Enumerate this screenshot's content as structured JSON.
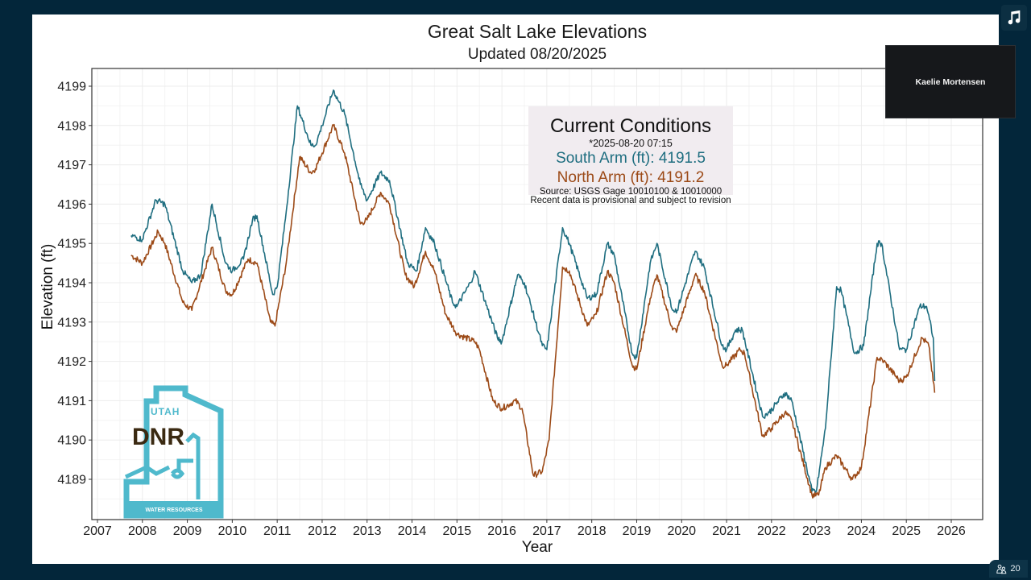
{
  "overlay": {
    "presenter_name": "Kaelie Mortensen",
    "music_icon": "music-note-icon",
    "participants_icon": "people-icon",
    "participants_count": "20"
  },
  "current_conditions": {
    "heading": "Current Conditions",
    "timestamp": "*2025-08-20 07:15",
    "south_arm": "South Arm (ft): 4191.5",
    "north_arm": "North Arm (ft): 4191.2",
    "source": "Source: USGS Gage 10010100 & 10010000",
    "disclaimer": "Recent data is provisional and subject to revision"
  },
  "logo": {
    "line1": "UTAH",
    "line2": "DNR",
    "line3": "WATER RESOURCES",
    "colors": {
      "teal": "#4fb9cc",
      "brown": "#3b2a12"
    }
  },
  "chart_data": {
    "type": "line",
    "title": "Great Salt Lake Elevations",
    "subtitle": "Updated 08/20/2025",
    "xlabel": "Year",
    "ylabel": "Elevation (ft)",
    "xlim": [
      2007,
      2026.5
    ],
    "ylim": [
      4188.0,
      4199.45
    ],
    "x_ticks": [
      2007,
      2008,
      2009,
      2010,
      2011,
      2012,
      2013,
      2014,
      2015,
      2016,
      2017,
      2018,
      2019,
      2020,
      2021,
      2022,
      2023,
      2024,
      2025,
      2026
    ],
    "y_ticks": [
      4189,
      4190,
      4191,
      4192,
      4193,
      4194,
      4195,
      4196,
      4197,
      4198,
      4199
    ],
    "grid": true,
    "legend": "none",
    "series": [
      {
        "name": "South Arm",
        "color": "#1f6e80",
        "x": [
          2007.75,
          2008.0,
          2008.3,
          2008.5,
          2008.9,
          2009.1,
          2009.3,
          2009.55,
          2009.85,
          2010.0,
          2010.25,
          2010.45,
          2010.55,
          2010.9,
          2011.0,
          2011.2,
          2011.45,
          2011.75,
          2011.85,
          2012.0,
          2012.25,
          2012.5,
          2012.85,
          2013.0,
          2013.3,
          2013.5,
          2013.9,
          2014.1,
          2014.3,
          2014.5,
          2014.9,
          2015.0,
          2015.3,
          2015.4,
          2015.9,
          2016.0,
          2016.35,
          2016.5,
          2016.9,
          2017.0,
          2017.35,
          2017.5,
          2017.9,
          2018.1,
          2018.35,
          2018.5,
          2018.9,
          2019.0,
          2019.3,
          2019.45,
          2019.8,
          2019.9,
          2020.3,
          2020.5,
          2020.9,
          2021.0,
          2021.2,
          2021.35,
          2021.8,
          2021.95,
          2022.3,
          2022.45,
          2022.9,
          2023.0,
          2023.2,
          2023.45,
          2023.55,
          2023.85,
          2024.05,
          2024.35,
          2024.45,
          2024.85,
          2025.0,
          2025.3,
          2025.45,
          2025.6,
          2025.63
        ],
        "y": [
          4195.2,
          4195.1,
          4196.1,
          4196.0,
          4194.3,
          4194.0,
          4194.2,
          4196.0,
          4194.5,
          4194.3,
          4194.6,
          4195.6,
          4195.7,
          4193.7,
          4193.9,
          4195.8,
          4198.5,
          4197.5,
          4197.5,
          4198.0,
          4198.9,
          4198.3,
          4196.5,
          4196.1,
          4196.8,
          4196.6,
          4194.5,
          4194.3,
          4195.4,
          4195.0,
          4193.5,
          4193.4,
          4194.0,
          4194.3,
          4192.6,
          4192.5,
          4194.2,
          4194.0,
          4192.4,
          4192.3,
          4195.4,
          4195.0,
          4193.6,
          4193.7,
          4195.0,
          4194.7,
          4192.2,
          4192.1,
          4194.5,
          4195.0,
          4193.3,
          4193.3,
          4194.8,
          4194.4,
          4192.4,
          4192.3,
          4192.8,
          4192.8,
          4190.6,
          4190.7,
          4191.2,
          4191.0,
          4188.7,
          4188.7,
          4190.3,
          4193.9,
          4193.8,
          4192.2,
          4192.4,
          4195.0,
          4195.0,
          4192.3,
          4192.3,
          4193.4,
          4193.4,
          4192.6,
          4191.5
        ]
      },
      {
        "name": "North Arm",
        "color": "#9c4a17",
        "x": [
          2007.75,
          2008.0,
          2008.35,
          2008.5,
          2008.9,
          2009.1,
          2009.55,
          2009.85,
          2010.0,
          2010.35,
          2010.55,
          2010.85,
          2010.95,
          2011.2,
          2011.5,
          2011.75,
          2011.85,
          2012.25,
          2012.5,
          2012.85,
          2013.0,
          2013.3,
          2013.5,
          2013.85,
          2014.05,
          2014.3,
          2014.5,
          2014.75,
          2015.0,
          2015.4,
          2015.5,
          2015.8,
          2016.0,
          2016.3,
          2016.45,
          2016.7,
          2016.9,
          2017.05,
          2017.35,
          2017.5,
          2017.9,
          2018.1,
          2018.35,
          2018.5,
          2018.9,
          2019.0,
          2019.3,
          2019.45,
          2019.8,
          2019.9,
          2020.3,
          2020.5,
          2020.9,
          2021.0,
          2021.3,
          2021.4,
          2021.8,
          2022.0,
          2022.3,
          2022.45,
          2022.9,
          2023.05,
          2023.2,
          2023.45,
          2023.8,
          2024.0,
          2024.35,
          2024.5,
          2024.85,
          2025.0,
          2025.35,
          2025.5,
          2025.63
        ],
        "y": [
          4194.7,
          4194.5,
          4195.3,
          4195.0,
          4193.5,
          4193.3,
          4194.9,
          4193.8,
          4193.7,
          4194.6,
          4194.5,
          4193.0,
          4192.9,
          4194.5,
          4197.2,
          4196.8,
          4196.9,
          4198.0,
          4197.3,
          4195.5,
          4195.6,
          4196.3,
          4196.0,
          4194.2,
          4193.9,
          4194.8,
          4194.3,
          4193.2,
          4192.7,
          4192.5,
          4192.3,
          4191.0,
          4190.8,
          4191.0,
          4190.8,
          4189.1,
          4189.2,
          4190.0,
          4194.4,
          4194.3,
          4192.9,
          4193.2,
          4194.3,
          4194.0,
          4191.9,
          4191.8,
          4193.6,
          4194.2,
          4192.8,
          4192.8,
          4194.2,
          4193.8,
          4191.9,
          4191.9,
          4192.3,
          4192.2,
          4190.1,
          4190.3,
          4190.7,
          4190.5,
          4188.6,
          4188.6,
          4189.3,
          4189.6,
          4189.0,
          4189.3,
          4192.1,
          4192.0,
          4191.5,
          4191.6,
          4192.6,
          4192.4,
          4191.2
        ]
      }
    ]
  }
}
